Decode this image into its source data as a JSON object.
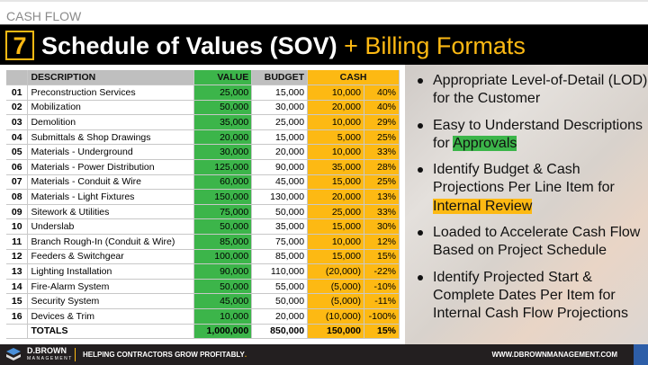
{
  "section": "CASH FLOW",
  "header": {
    "number": "7",
    "title": "Schedule of Values (SOV)",
    "subtitle": "+ Billing Formats"
  },
  "table": {
    "headers": [
      "",
      "DESCRIPTION",
      "VALUE",
      "BUDGET",
      "CASH"
    ],
    "rows": [
      {
        "n": "01",
        "d": "Preconstruction Services",
        "v": "25,000",
        "b": "15,000",
        "c": "10,000",
        "p": "40%"
      },
      {
        "n": "02",
        "d": "Mobilization",
        "v": "50,000",
        "b": "30,000",
        "c": "20,000",
        "p": "40%"
      },
      {
        "n": "03",
        "d": "Demolition",
        "v": "35,000",
        "b": "25,000",
        "c": "10,000",
        "p": "29%"
      },
      {
        "n": "04",
        "d": "Submittals & Shop Drawings",
        "v": "20,000",
        "b": "15,000",
        "c": "5,000",
        "p": "25%"
      },
      {
        "n": "05",
        "d": "Materials - Underground",
        "v": "30,000",
        "b": "20,000",
        "c": "10,000",
        "p": "33%"
      },
      {
        "n": "06",
        "d": "Materials - Power Distribution",
        "v": "125,000",
        "b": "90,000",
        "c": "35,000",
        "p": "28%"
      },
      {
        "n": "07",
        "d": "Materials - Conduit & Wire",
        "v": "60,000",
        "b": "45,000",
        "c": "15,000",
        "p": "25%"
      },
      {
        "n": "08",
        "d": "Materials - Light Fixtures",
        "v": "150,000",
        "b": "130,000",
        "c": "20,000",
        "p": "13%"
      },
      {
        "n": "09",
        "d": "Sitework & Utilities",
        "v": "75,000",
        "b": "50,000",
        "c": "25,000",
        "p": "33%"
      },
      {
        "n": "10",
        "d": "Underslab",
        "v": "50,000",
        "b": "35,000",
        "c": "15,000",
        "p": "30%"
      },
      {
        "n": "11",
        "d": "Branch Rough-In (Conduit & Wire)",
        "v": "85,000",
        "b": "75,000",
        "c": "10,000",
        "p": "12%"
      },
      {
        "n": "12",
        "d": "Feeders & Switchgear",
        "v": "100,000",
        "b": "85,000",
        "c": "15,000",
        "p": "15%"
      },
      {
        "n": "13",
        "d": "Lighting Installation",
        "v": "90,000",
        "b": "110,000",
        "c": "(20,000)",
        "p": "-22%"
      },
      {
        "n": "14",
        "d": "Fire-Alarm System",
        "v": "50,000",
        "b": "55,000",
        "c": "(5,000)",
        "p": "-10%"
      },
      {
        "n": "15",
        "d": "Security System",
        "v": "45,000",
        "b": "50,000",
        "c": "(5,000)",
        "p": "-11%"
      },
      {
        "n": "16",
        "d": "Devices & Trim",
        "v": "10,000",
        "b": "20,000",
        "c": "(10,000)",
        "p": "-100%"
      }
    ],
    "totals": {
      "label": "TOTALS",
      "v": "1,000,000",
      "b": "850,000",
      "c": "150,000",
      "p": "15%"
    }
  },
  "bullets": [
    {
      "text": "Appropriate Level-of-Detail (LOD) for the Customer",
      "highlight": "",
      "highlight_color": ""
    },
    {
      "text": "Easy to Understand Descriptions for ",
      "highlight": "Approvals",
      "highlight_color": "#3cb54a"
    },
    {
      "text": "Identify Budget & Cash Projections Per Line Item for ",
      "highlight": "Internal Review",
      "highlight_color": "#fdb913"
    },
    {
      "text": "Loaded to Accelerate Cash Flow Based on Project Schedule",
      "highlight": "",
      "highlight_color": ""
    },
    {
      "text": "Identify Projected Start & Complete Dates Per Item for Internal Cash Flow Projections",
      "highlight": "",
      "highlight_color": ""
    }
  ],
  "footer": {
    "brand": "D.BROWN",
    "brand_sub": "MANAGEMENT",
    "tagline": "HELPING CONTRACTORS GROW PROFITABLY",
    "tagline_dot": ".",
    "url": "WWW.DBROWNMANAGEMENT.COM"
  },
  "colors": {
    "accent": "#fdb913",
    "green": "#3cb54a",
    "footer_bg": "#231f20",
    "blue": "#2d5ea8"
  }
}
